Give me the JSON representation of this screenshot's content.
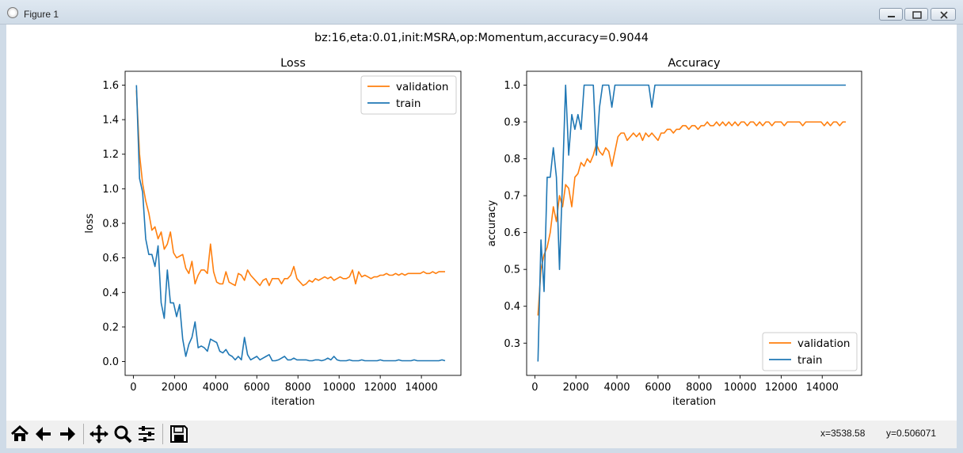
{
  "window": {
    "title": "Figure 1"
  },
  "figure": {
    "suptitle": "bz:16,eta:0.01,init:MSRA,op:Momentum,accuracy=0.9044"
  },
  "status": {
    "x": "x=3538.58",
    "y": "y=0.506071"
  },
  "toolbar": {
    "buttons": [
      "home-icon",
      "back-arrow-icon",
      "forward-arrow-icon",
      "pan-move-icon",
      "zoom-magnifier-icon",
      "configure-subplots-icon",
      "save-disk-icon"
    ]
  },
  "colors": {
    "validation": "#ff7f0e",
    "train": "#1f77b4"
  },
  "chart_data": [
    {
      "type": "line",
      "title": "Loss",
      "xlabel": "iteration",
      "ylabel": "loss",
      "xlim": [
        -400,
        15920
      ],
      "ylim": [
        -0.08,
        1.68
      ],
      "xticks": [
        0,
        2000,
        4000,
        6000,
        8000,
        10000,
        12000,
        14000
      ],
      "yticks": [
        0.0,
        0.2,
        0.4,
        0.6,
        0.8,
        1.0,
        1.2,
        1.4,
        1.6
      ],
      "ytick_labels": [
        "0.0",
        "0.2",
        "0.4",
        "0.6",
        "0.8",
        "1.0",
        "1.2",
        "1.4",
        "1.6"
      ],
      "legend_position": "upper right",
      "series": [
        {
          "name": "validation",
          "x": [
            150,
            300,
            450,
            600,
            750,
            900,
            1050,
            1200,
            1350,
            1500,
            1650,
            1800,
            1950,
            2100,
            2250,
            2400,
            2550,
            2700,
            2850,
            3000,
            3150,
            3300,
            3450,
            3600,
            3750,
            3900,
            4050,
            4200,
            4350,
            4500,
            4650,
            4800,
            4950,
            5100,
            5250,
            5400,
            5550,
            5700,
            5850,
            6000,
            6150,
            6300,
            6450,
            6600,
            6750,
            6900,
            7050,
            7200,
            7350,
            7500,
            7650,
            7800,
            7950,
            8100,
            8250,
            8400,
            8550,
            8700,
            8850,
            9000,
            9150,
            9300,
            9450,
            9600,
            9750,
            9900,
            10050,
            10200,
            10350,
            10500,
            10650,
            10800,
            10950,
            11100,
            11250,
            11400,
            11550,
            11700,
            11850,
            12000,
            12150,
            12300,
            12450,
            12600,
            12750,
            12900,
            13050,
            13200,
            13350,
            13500,
            13650,
            13800,
            13950,
            14100,
            14250,
            14400,
            14550,
            14700,
            14850,
            15000,
            15150
          ],
          "y": [
            1.57,
            1.2,
            1.03,
            0.93,
            0.86,
            0.76,
            0.78,
            0.71,
            0.75,
            0.65,
            0.68,
            0.75,
            0.63,
            0.6,
            0.61,
            0.62,
            0.54,
            0.51,
            0.58,
            0.45,
            0.5,
            0.53,
            0.53,
            0.51,
            0.68,
            0.52,
            0.46,
            0.45,
            0.45,
            0.52,
            0.46,
            0.45,
            0.44,
            0.51,
            0.5,
            0.47,
            0.53,
            0.5,
            0.48,
            0.46,
            0.44,
            0.47,
            0.48,
            0.44,
            0.48,
            0.48,
            0.48,
            0.45,
            0.48,
            0.48,
            0.5,
            0.55,
            0.48,
            0.46,
            0.44,
            0.45,
            0.47,
            0.46,
            0.48,
            0.47,
            0.48,
            0.49,
            0.48,
            0.49,
            0.47,
            0.48,
            0.49,
            0.48,
            0.48,
            0.49,
            0.53,
            0.45,
            0.52,
            0.49,
            0.5,
            0.49,
            0.48,
            0.49,
            0.49,
            0.5,
            0.5,
            0.51,
            0.5,
            0.5,
            0.51,
            0.5,
            0.51,
            0.5,
            0.51,
            0.51,
            0.51,
            0.51,
            0.51,
            0.52,
            0.51,
            0.51,
            0.52,
            0.51,
            0.52,
            0.52,
            0.52
          ]
        },
        {
          "name": "train",
          "x": [
            150,
            300,
            450,
            600,
            750,
            900,
            1050,
            1200,
            1350,
            1500,
            1650,
            1800,
            1950,
            2100,
            2250,
            2400,
            2550,
            2700,
            2850,
            3000,
            3150,
            3300,
            3450,
            3600,
            3750,
            3900,
            4050,
            4200,
            4350,
            4500,
            4650,
            4800,
            4950,
            5100,
            5250,
            5400,
            5550,
            5700,
            5850,
            6000,
            6150,
            6300,
            6450,
            6600,
            6750,
            6900,
            7050,
            7200,
            7350,
            7500,
            7650,
            7800,
            7950,
            8100,
            8250,
            8400,
            8550,
            8700,
            8850,
            9000,
            9150,
            9300,
            9450,
            9600,
            9750,
            9900,
            10050,
            10200,
            10350,
            10500,
            10650,
            10800,
            10950,
            11100,
            11250,
            11400,
            11550,
            11700,
            11850,
            12000,
            12150,
            12300,
            12450,
            12600,
            12750,
            12900,
            13050,
            13200,
            13350,
            13500,
            13650,
            13800,
            13950,
            14100,
            14250,
            14400,
            14550,
            14700,
            14850,
            15000,
            15150
          ],
          "y": [
            1.6,
            1.06,
            0.98,
            0.71,
            0.62,
            0.62,
            0.55,
            0.67,
            0.34,
            0.25,
            0.53,
            0.34,
            0.34,
            0.26,
            0.33,
            0.13,
            0.03,
            0.1,
            0.14,
            0.23,
            0.08,
            0.09,
            0.08,
            0.06,
            0.13,
            0.12,
            0.11,
            0.06,
            0.05,
            0.07,
            0.04,
            0.03,
            0.01,
            0.03,
            0.01,
            0.14,
            0.04,
            0.01,
            0.02,
            0.03,
            0.01,
            0.02,
            0.03,
            0.04,
            0.005,
            0.005,
            0.01,
            0.02,
            0.03,
            0.01,
            0.01,
            0.02,
            0.01,
            0.01,
            0.01,
            0.01,
            0.005,
            0.005,
            0.01,
            0.01,
            0.005,
            0.01,
            0.02,
            0.01,
            0.03,
            0.01,
            0.005,
            0.005,
            0.005,
            0.01,
            0.005,
            0.005,
            0.005,
            0.01,
            0.005,
            0.005,
            0.005,
            0.005,
            0.005,
            0.01,
            0.005,
            0.005,
            0.005,
            0.005,
            0.005,
            0.01,
            0.005,
            0.005,
            0.005,
            0.005,
            0.01,
            0.005,
            0.005,
            0.005,
            0.005,
            0.005,
            0.005,
            0.005,
            0.005,
            0.01,
            0.005
          ]
        }
      ]
    },
    {
      "type": "line",
      "title": "Accuracy",
      "xlabel": "iteration",
      "ylabel": "accuracy",
      "xlim": [
        -400,
        15920
      ],
      "ylim": [
        0.2125,
        1.0375
      ],
      "xticks": [
        0,
        2000,
        4000,
        6000,
        8000,
        10000,
        12000,
        14000
      ],
      "yticks": [
        0.3,
        0.4,
        0.5,
        0.6,
        0.7,
        0.8,
        0.9,
        1.0
      ],
      "ytick_labels": [
        "0.3",
        "0.4",
        "0.5",
        "0.6",
        "0.7",
        "0.8",
        "0.9",
        "1.0"
      ],
      "legend_position": "lower right",
      "series": [
        {
          "name": "validation",
          "x": [
            150,
            300,
            450,
            600,
            750,
            900,
            1050,
            1200,
            1350,
            1500,
            1650,
            1800,
            1950,
            2100,
            2250,
            2400,
            2550,
            2700,
            2850,
            3000,
            3150,
            3300,
            3450,
            3600,
            3750,
            3900,
            4050,
            4200,
            4350,
            4500,
            4650,
            4800,
            4950,
            5100,
            5250,
            5400,
            5550,
            5700,
            5850,
            6000,
            6150,
            6300,
            6450,
            6600,
            6750,
            6900,
            7050,
            7200,
            7350,
            7500,
            7650,
            7800,
            7950,
            8100,
            8250,
            8400,
            8550,
            8700,
            8850,
            9000,
            9150,
            9300,
            9450,
            9600,
            9750,
            9900,
            10050,
            10200,
            10350,
            10500,
            10650,
            10800,
            10950,
            11100,
            11250,
            11400,
            11550,
            11700,
            11850,
            12000,
            12150,
            12300,
            12450,
            12600,
            12750,
            12900,
            13050,
            13200,
            13350,
            13500,
            13650,
            13800,
            13950,
            14100,
            14250,
            14400,
            14550,
            14700,
            14850,
            15000,
            15150
          ],
          "y": [
            0.375,
            0.5,
            0.54,
            0.56,
            0.6,
            0.67,
            0.63,
            0.7,
            0.67,
            0.73,
            0.72,
            0.67,
            0.75,
            0.76,
            0.79,
            0.78,
            0.8,
            0.79,
            0.81,
            0.84,
            0.82,
            0.81,
            0.83,
            0.82,
            0.78,
            0.82,
            0.86,
            0.87,
            0.87,
            0.85,
            0.86,
            0.87,
            0.86,
            0.87,
            0.85,
            0.87,
            0.86,
            0.87,
            0.86,
            0.85,
            0.87,
            0.87,
            0.88,
            0.88,
            0.87,
            0.88,
            0.88,
            0.89,
            0.89,
            0.88,
            0.89,
            0.89,
            0.88,
            0.89,
            0.89,
            0.9,
            0.89,
            0.89,
            0.9,
            0.89,
            0.9,
            0.89,
            0.9,
            0.89,
            0.9,
            0.89,
            0.9,
            0.9,
            0.89,
            0.9,
            0.9,
            0.89,
            0.9,
            0.89,
            0.9,
            0.9,
            0.89,
            0.9,
            0.9,
            0.9,
            0.89,
            0.9,
            0.9,
            0.9,
            0.9,
            0.9,
            0.89,
            0.9,
            0.9,
            0.9,
            0.9,
            0.9,
            0.9,
            0.89,
            0.9,
            0.89,
            0.9,
            0.9,
            0.89,
            0.9,
            0.9
          ]
        },
        {
          "name": "train",
          "x": [
            150,
            300,
            450,
            600,
            750,
            900,
            1050,
            1200,
            1350,
            1500,
            1650,
            1800,
            1950,
            2100,
            2250,
            2400,
            2550,
            2700,
            2850,
            3000,
            3150,
            3300,
            3450,
            3600,
            3750,
            3900,
            4050,
            4200,
            4350,
            4500,
            4650,
            4800,
            4950,
            5100,
            5250,
            5400,
            5550,
            5700,
            5850,
            6000,
            6150,
            6300,
            6450,
            6600,
            6750,
            6900,
            7050,
            7200,
            7350,
            7500,
            7650,
            7800,
            7950,
            8100,
            8250,
            8400,
            8550,
            8700,
            8850,
            9000,
            9150,
            9300,
            9450,
            9600,
            9750,
            9900,
            10050,
            10200,
            10350,
            10500,
            10650,
            10800,
            10950,
            11100,
            11250,
            11400,
            11550,
            11700,
            11850,
            12000,
            12150,
            12300,
            12450,
            12600,
            12750,
            12900,
            13050,
            13200,
            13350,
            13500,
            13650,
            13800,
            13950,
            14100,
            14250,
            14400,
            14550,
            14700,
            14850,
            15000,
            15150
          ],
          "y": [
            0.25,
            0.58,
            0.44,
            0.75,
            0.75,
            0.83,
            0.75,
            0.5,
            0.75,
            1.0,
            0.81,
            0.92,
            0.88,
            0.92,
            0.88,
            1.0,
            1.0,
            1.0,
            1.0,
            0.81,
            0.94,
            1.0,
            1.0,
            1.0,
            0.94,
            1.0,
            1.0,
            1.0,
            1.0,
            1.0,
            1.0,
            1.0,
            1.0,
            1.0,
            1.0,
            1.0,
            1.0,
            0.94,
            1.0,
            1.0,
            1.0,
            1.0,
            1.0,
            1.0,
            1.0,
            1.0,
            1.0,
            1.0,
            1.0,
            1.0,
            1.0,
            1.0,
            1.0,
            1.0,
            1.0,
            1.0,
            1.0,
            1.0,
            1.0,
            1.0,
            1.0,
            1.0,
            1.0,
            1.0,
            1.0,
            1.0,
            1.0,
            1.0,
            1.0,
            1.0,
            1.0,
            1.0,
            1.0,
            1.0,
            1.0,
            1.0,
            1.0,
            1.0,
            1.0,
            1.0,
            1.0,
            1.0,
            1.0,
            1.0,
            1.0,
            1.0,
            1.0,
            1.0,
            1.0,
            1.0,
            1.0,
            1.0,
            1.0,
            1.0,
            1.0,
            1.0,
            1.0,
            1.0,
            1.0,
            1.0,
            1.0
          ]
        }
      ]
    }
  ]
}
